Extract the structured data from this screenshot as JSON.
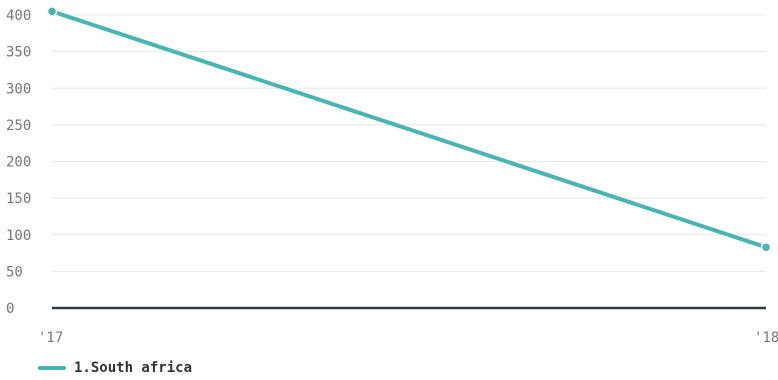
{
  "chart_data": {
    "type": "line",
    "title": "",
    "xlabel": "",
    "ylabel": "",
    "categories": [
      "'17",
      "'18"
    ],
    "y_ticks": [
      0,
      50,
      100,
      150,
      200,
      250,
      300,
      350,
      400
    ],
    "ylim": [
      0,
      400
    ],
    "grid": true,
    "legend_position": "bottom-left",
    "series": [
      {
        "name": "1.South africa",
        "color": "#45b6b2",
        "values": [
          405,
          83
        ]
      }
    ]
  },
  "legend": {
    "items": [
      {
        "label": "1.South africa",
        "color": "#45b6b2"
      }
    ]
  }
}
